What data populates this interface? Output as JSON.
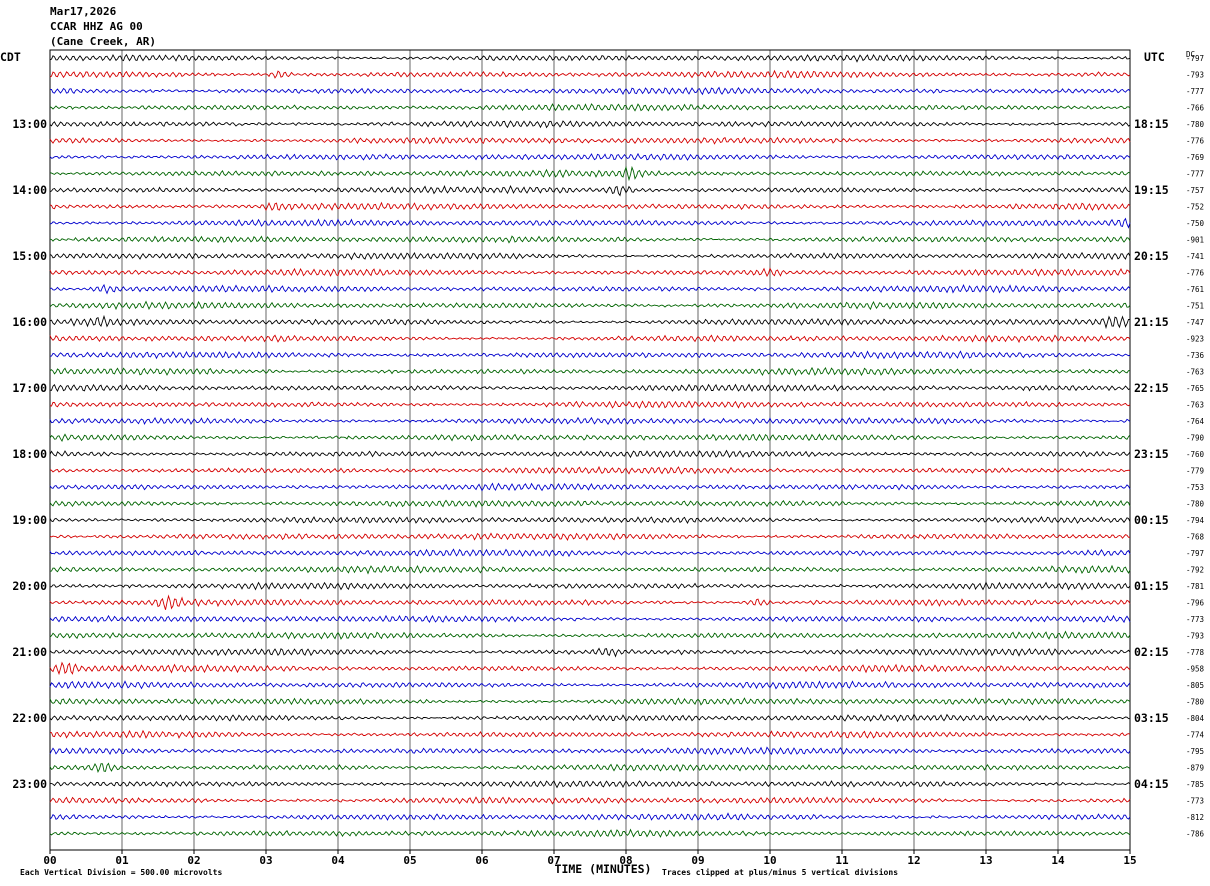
{
  "header": {
    "date": "Mar17,2026",
    "station": "CCAR HHZ AG 00",
    "location": "(Cane Creek, AR)"
  },
  "chart_data": {
    "type": "line",
    "left_axis_label": "CDT",
    "right_axis_label": "UTC",
    "dc_label": "DC",
    "xlabel": "TIME (MINUTES)",
    "x_ticks": [
      "00",
      "01",
      "02",
      "03",
      "04",
      "05",
      "06",
      "07",
      "08",
      "09",
      "10",
      "11",
      "12",
      "13",
      "14",
      "15"
    ],
    "xlim": [
      0,
      15
    ],
    "trace_colors": [
      "#000000",
      "#d40000",
      "#0000cc",
      "#006400"
    ],
    "left_hour_labels": [
      "13:00",
      "14:00",
      "15:00",
      "16:00",
      "17:00",
      "18:00",
      "19:00",
      "20:00",
      "21:00",
      "22:00",
      "23:00"
    ],
    "right_hour_labels": [
      "18:15",
      "19:15",
      "20:15",
      "21:15",
      "22:15",
      "23:15",
      "00:15",
      "01:15",
      "02:15",
      "03:15",
      "04:15"
    ],
    "dc_offsets": [
      "-797",
      "-793",
      "-777",
      "-766",
      "-780",
      "-776",
      "-769",
      "-777",
      "-757",
      "-752",
      "-750",
      "-901",
      "-741",
      "-776",
      "-761",
      "-751",
      "-747",
      "-923",
      "-736",
      "-763",
      "-765",
      "-763",
      "-764",
      "-790",
      "-760",
      "-779",
      "-753",
      "-780",
      "-794",
      "-768",
      "-797",
      "-792",
      "-781",
      "-796",
      "-773",
      "-793",
      "-778",
      "-958",
      "-805",
      "-780",
      "-804",
      "-774",
      "-795",
      "-879",
      "-785",
      "-773",
      "-812",
      "-786"
    ],
    "events": [
      {
        "row": 1,
        "minute": 3.2,
        "amp": 3
      },
      {
        "row": 7,
        "minute": 8.05,
        "amp": 4
      },
      {
        "row": 8,
        "minute": 7.9,
        "amp": 4
      },
      {
        "row": 9,
        "minute": 3.15,
        "amp": 3
      },
      {
        "row": 10,
        "minute": 14.9,
        "amp": 3
      },
      {
        "row": 13,
        "minute": 10.0,
        "amp": 3
      },
      {
        "row": 14,
        "minute": 0.8,
        "amp": 3
      },
      {
        "row": 16,
        "minute": 0.7,
        "amp": 3
      },
      {
        "row": 16,
        "minute": 14.8,
        "amp": 5
      },
      {
        "row": 33,
        "minute": 1.65,
        "amp": 6
      },
      {
        "row": 33,
        "minute": 9.85,
        "amp": 3
      },
      {
        "row": 36,
        "minute": 7.75,
        "amp": 3
      },
      {
        "row": 37,
        "minute": 0.2,
        "amp": 6
      },
      {
        "row": 43,
        "minute": 0.75,
        "amp": 5
      }
    ],
    "footer_left": "Each Vertical Division =  500.00 microvolts",
    "footer_right": "Traces clipped at plus/minus 5 vertical divisions"
  }
}
